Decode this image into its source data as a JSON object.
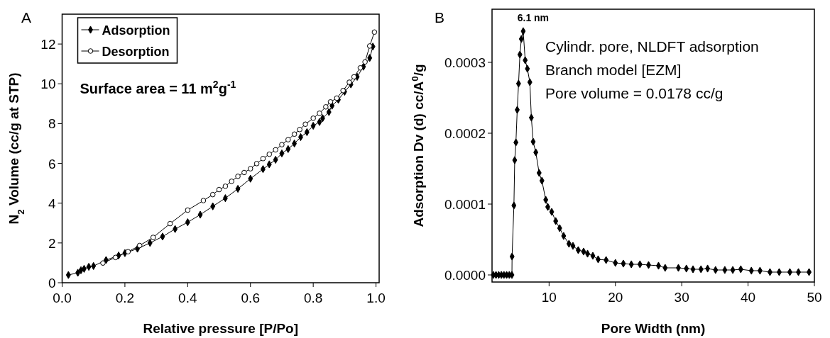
{
  "chart_data": [
    {
      "type": "line",
      "annotations": [
        "A",
        "Surface area = 11 m$^{2}$g$^{-1}$"
      ],
      "xlabel": "Relative pressure [P/Po]",
      "ylabel": "N$_{2}$ Volume (cc/g at STP)",
      "xlim": [
        0,
        1.01
      ],
      "ylim": [
        0,
        13.5
      ],
      "xticks": [
        {
          "value": 0,
          "label": "0.0"
        },
        0.2,
        0.4,
        0.6,
        0.8,
        {
          "value": 1,
          "label": "1.0"
        }
      ],
      "yticks": [
        0,
        2,
        4,
        6,
        8,
        10,
        12
      ],
      "legend": "top left",
      "grid": false,
      "series": [
        {
          "name": "Adsorption",
          "color": "#000000",
          "marker": "diamond",
          "x": [
            0.02,
            0.05,
            0.06,
            0.07,
            0.085,
            0.1,
            0.14,
            0.18,
            0.2,
            0.24,
            0.28,
            0.32,
            0.36,
            0.4,
            0.44,
            0.48,
            0.52,
            0.56,
            0.6,
            0.64,
            0.66,
            0.68,
            0.7,
            0.72,
            0.74,
            0.76,
            0.78,
            0.8,
            0.82,
            0.83,
            0.85,
            0.86,
            0.88,
            0.9,
            0.92,
            0.94,
            0.96,
            0.98,
            0.99
          ],
          "values": [
            0.39,
            0.5,
            0.63,
            0.7,
            0.8,
            0.84,
            1.14,
            1.37,
            1.49,
            1.71,
            2.0,
            2.32,
            2.7,
            3.04,
            3.42,
            3.84,
            4.25,
            4.72,
            5.23,
            5.71,
            5.95,
            6.18,
            6.5,
            6.72,
            7.0,
            7.32,
            7.57,
            7.89,
            8.08,
            8.27,
            8.58,
            8.9,
            9.2,
            9.6,
            9.97,
            10.35,
            10.86,
            11.3,
            11.87
          ]
        },
        {
          "name": "Desorption",
          "color": "#000000",
          "marker": "circle",
          "x": [
            0.995,
            0.98,
            0.965,
            0.95,
            0.93,
            0.915,
            0.895,
            0.875,
            0.855,
            0.84,
            0.82,
            0.8,
            0.775,
            0.757,
            0.74,
            0.72,
            0.7,
            0.68,
            0.66,
            0.64,
            0.62,
            0.6,
            0.58,
            0.56,
            0.54,
            0.52,
            0.5,
            0.48,
            0.45,
            0.4,
            0.344,
            0.29,
            0.247,
            0.21,
            0.17,
            0.13
          ],
          "values": [
            12.6,
            11.9,
            11.1,
            10.8,
            10.35,
            10.08,
            9.66,
            9.28,
            9.09,
            8.84,
            8.52,
            8.27,
            7.97,
            7.7,
            7.47,
            7.19,
            6.94,
            6.68,
            6.46,
            6.24,
            5.99,
            5.73,
            5.54,
            5.35,
            5.1,
            4.85,
            4.68,
            4.43,
            4.13,
            3.65,
            2.97,
            2.28,
            1.87,
            1.56,
            1.27,
            0.99
          ]
        }
      ]
    },
    {
      "type": "line",
      "annotations": [
        "B",
        {
          "text": "6.1 nm",
          "x": 6.1,
          "y": 0.000344
        },
        "Cylindr. pore, NLDFT adsorption",
        "Branch model [EZM]",
        "Pore volume = 0.0178  cc/g"
      ],
      "xlabel": "Pore Width (nm)",
      "ylabel": "Adsorption Dv (d) cc/A$^{0}$/g",
      "xlim": [
        1.4,
        50
      ],
      "ylim": [
        -1e-05,
        0.000375
      ],
      "xticks": [
        10,
        20,
        30,
        40,
        50
      ],
      "yticks": [
        {
          "value": 0,
          "label": "0.0000"
        },
        {
          "value": 0.0001,
          "label": "0.0001"
        },
        {
          "value": 0.0002,
          "label": "0.0002"
        },
        {
          "value": 0.0003,
          "label": "0.0003"
        }
      ],
      "grid": false,
      "legend": false,
      "marker": "diamond",
      "series": [
        {
          "color": "#000000",
          "x": [
            1.6,
            2.0,
            2.4,
            2.8,
            3.2,
            3.6,
            4.0,
            4.4,
            4.42,
            4.7,
            4.82,
            5.0,
            5.2,
            5.4,
            5.6,
            5.82,
            6.1,
            6.4,
            6.73,
            7.1,
            7.33,
            7.6,
            8.0,
            8.5,
            8.92,
            9.5,
            9.8,
            10.4,
            11.0,
            11.6,
            12.2,
            13.0,
            13.6,
            14.4,
            15.2,
            15.8,
            16.6,
            17.4,
            18.6,
            20,
            21.2,
            22.4,
            23.7,
            25,
            26.5,
            27.5,
            29.5,
            30.7,
            31.7,
            32.9,
            33.9,
            35.1,
            36.5,
            37.7,
            38.9,
            40.5,
            41.8,
            43.3,
            44.7,
            46.3,
            47.6,
            49.2
          ],
          "values": [
            0,
            0,
            0,
            0,
            0,
            0,
            0,
            0,
            2.6e-05,
            9.8e-05,
            0.000162,
            0.000187,
            0.000233,
            0.00027,
            0.000311,
            0.000333,
            0.000344,
            0.000303,
            0.000291,
            0.000272,
            0.000222,
            0.000188,
            0.000173,
            0.000144,
            0.000133,
            0.000106,
            9.6e-05,
            8.9e-05,
            7.6e-05,
            6.6e-05,
            5.5e-05,
            4.4e-05,
            4.1e-05,
            3.5e-05,
            3.3e-05,
            3e-05,
            2.7e-05,
            2.2e-05,
            2.1e-05,
            1.7e-05,
            1.6e-05,
            1.5e-05,
            1.5e-05,
            1.4e-05,
            1.3e-05,
            1e-05,
            1e-05,
            9e-06,
            8e-06,
            8e-06,
            9e-06,
            7e-06,
            7e-06,
            7e-06,
            8e-06,
            6e-06,
            6e-06,
            4e-06,
            4e-06,
            4e-06,
            4e-06,
            4e-06
          ]
        }
      ]
    }
  ]
}
